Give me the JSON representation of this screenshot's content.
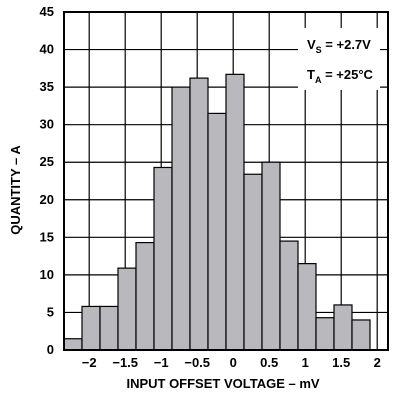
{
  "chart_data": {
    "type": "bar",
    "title": "",
    "xlabel": "INPUT OFFSET VOLTAGE – mV",
    "ylabel": "QUANTITY – A",
    "xlim": [
      -2.35,
      2.15
    ],
    "ylim": [
      0,
      45
    ],
    "grid": true,
    "bin_width": 0.25,
    "bins": [
      {
        "start": -2.35,
        "end": -2.1,
        "value": 1.5
      },
      {
        "start": -2.1,
        "end": -1.85,
        "value": 5.8
      },
      {
        "start": -1.85,
        "end": -1.6,
        "value": 5.8
      },
      {
        "start": -1.6,
        "end": -1.35,
        "value": 10.9
      },
      {
        "start": -1.35,
        "end": -1.1,
        "value": 14.3
      },
      {
        "start": -1.1,
        "end": -0.85,
        "value": 24.3
      },
      {
        "start": -0.85,
        "end": -0.6,
        "value": 35.0
      },
      {
        "start": -0.6,
        "end": -0.35,
        "value": 36.2
      },
      {
        "start": -0.35,
        "end": -0.1,
        "value": 31.5
      },
      {
        "start": -0.1,
        "end": 0.15,
        "value": 36.7
      },
      {
        "start": 0.15,
        "end": 0.4,
        "value": 23.4
      },
      {
        "start": 0.4,
        "end": 0.65,
        "value": 25.0
      },
      {
        "start": 0.65,
        "end": 0.9,
        "value": 14.5
      },
      {
        "start": 0.9,
        "end": 1.15,
        "value": 11.5
      },
      {
        "start": 1.15,
        "end": 1.4,
        "value": 4.3
      },
      {
        "start": 1.4,
        "end": 1.65,
        "value": 6.0
      },
      {
        "start": 1.65,
        "end": 1.9,
        "value": 4.0
      }
    ],
    "x_ticks": [
      {
        "value": -2,
        "label": "−2"
      },
      {
        "value": -1.5,
        "label": "−1.5"
      },
      {
        "value": -1,
        "label": "−1"
      },
      {
        "value": -0.5,
        "label": "−0.5"
      },
      {
        "value": 0,
        "label": "0"
      },
      {
        "value": 0.5,
        "label": "0.5"
      },
      {
        "value": 1,
        "label": "1"
      },
      {
        "value": 1.5,
        "label": "1.5"
      },
      {
        "value": 2,
        "label": "2"
      }
    ],
    "y_ticks": [
      {
        "value": 0,
        "label": "0"
      },
      {
        "value": 5,
        "label": "5"
      },
      {
        "value": 10,
        "label": "10"
      },
      {
        "value": 15,
        "label": "15"
      },
      {
        "value": 20,
        "label": "20"
      },
      {
        "value": 25,
        "label": "25"
      },
      {
        "value": 30,
        "label": "30"
      },
      {
        "value": 35,
        "label": "35"
      },
      {
        "value": 40,
        "label": "40"
      },
      {
        "value": 45,
        "label": "45"
      }
    ],
    "annotations": {
      "vs_main": "V",
      "vs_sub": "S",
      "vs_value": " = +2.7V",
      "ta_main": "T",
      "ta_sub": "A",
      "ta_value": " = +25°C"
    },
    "colors": {
      "bar_fill": "#b9b9bd",
      "bar_stroke": "#000000",
      "grid": "#000000"
    }
  }
}
